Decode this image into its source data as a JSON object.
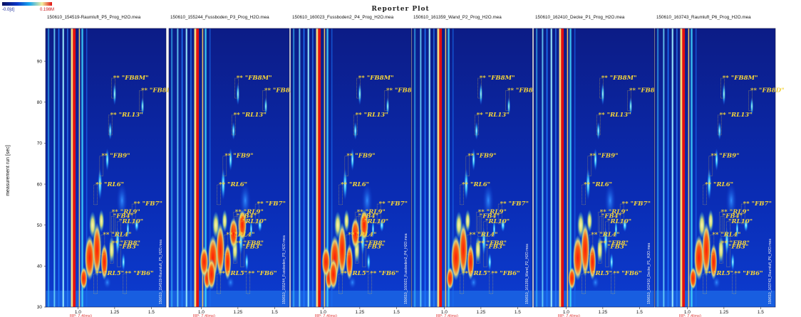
{
  "chart_data": {
    "type": "heatmap",
    "title": "Reporter Plot",
    "ylabel": "measurement run [sec]",
    "y_ticks": [
      "30",
      "40",
      "50",
      "60",
      "70",
      "80",
      "90"
    ],
    "ylim": [
      30,
      98
    ],
    "x_ticks": [
      "1.0",
      "1.25",
      "1.5"
    ],
    "x_sublabel": "RP: 7.4(ms)",
    "color_scale": {
      "min_label": "-0.0[d]",
      "max_label": "0.198M",
      "colors": [
        "#08105e",
        "#0a35c8",
        "#1aa8ee",
        "#f4f0a0",
        "#e01010"
      ]
    },
    "panels": [
      {
        "file": "150610_154519-Raumluft_P5_Prog_H2O.mea",
        "vertical_label": "150610_154519-Raumluft_P5_H2O.mea"
      },
      {
        "file": "150610_155244_Fussboden_P3_Prog_H2O.mea",
        "vertical_label": "150610_155244_Fussboden_P3_H2O.mea"
      },
      {
        "file": "150610_160023_Fussboden2_P4_Prog_H2O.mea",
        "vertical_label": "150610_160023_Fussboden2_P4_H2O.mea"
      },
      {
        "file": "150610_161359_Wand_P2_Prog_H2O.mea",
        "vertical_label": "150610_161359_Wand_P2_H2O.mea"
      },
      {
        "file": "150610_162410_Decke_P1_Prog_H2O.mea",
        "vertical_label": "150610_162410_Decke_P1_H2O.mea"
      },
      {
        "file": "150610_163743_Raumluft_P6_Prog_H2O.mea",
        "vertical_label": "150610_163743_Raumluft_P6_H2O.mea"
      }
    ],
    "peaks": [
      {
        "label": "** \"FB8M\"",
        "x": 1.24,
        "y": 85.5
      },
      {
        "label": "** \"FB8D\"",
        "x": 1.43,
        "y": 82.5
      },
      {
        "label": "** \"RL13\"",
        "x": 1.22,
        "y": 76.5
      },
      {
        "label": "** \"FB9\"",
        "x": 1.16,
        "y": 66.5
      },
      {
        "label": "** \"RL6\"",
        "x": 1.12,
        "y": 59.5
      },
      {
        "label": "** \"FB7\"",
        "x": 1.38,
        "y": 54.8
      },
      {
        "label": "** \"RL9\"",
        "x": 1.23,
        "y": 52.8
      },
      {
        "label": "\"FB4\"",
        "x": 1.24,
        "y": 51.8
      },
      {
        "label": "\"RL10\"",
        "x": 1.28,
        "y": 50.5
      },
      {
        "label": "** \"RL4\"",
        "x": 1.17,
        "y": 47.3
      },
      {
        "label": "** \"FB8\"",
        "x": 1.23,
        "y": 45.2
      },
      {
        "label": "\"FB3\"",
        "x": 1.28,
        "y": 44.3
      },
      {
        "label": "** \"RL5\"",
        "x": 1.12,
        "y": 37.8
      },
      {
        "label": "** \"FB6\"",
        "x": 1.32,
        "y": 37.8
      }
    ]
  }
}
